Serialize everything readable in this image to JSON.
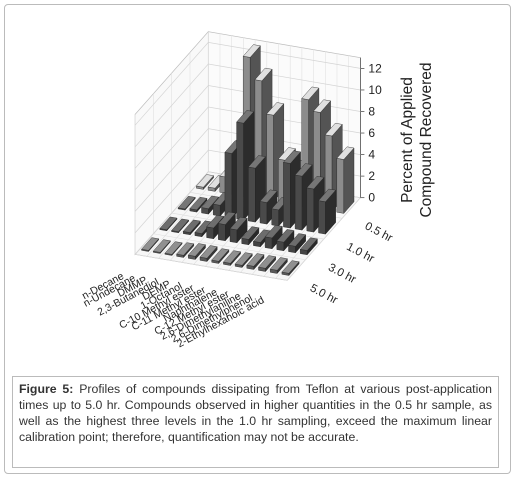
{
  "chart_data": {
    "type": "bar3d",
    "zlabel_lines": [
      "Percent of Applied",
      "Compound Recovered"
    ],
    "categories": [
      "n-Decane",
      "n-Undecane",
      "DMMP",
      "2,3-Butanediol",
      "DEMP",
      "1-Octanol",
      "C-10 Methyl ester",
      "C-11 Methyl ester",
      "Naphthalene",
      "C-12 Methyl ester",
      "2,6-Dimethylaniline",
      "2,6-Dimethylphenol",
      "2-Ethylhexanoic acid"
    ],
    "series": [
      {
        "name": "0.5 hr",
        "color": "#8c8c8c",
        "values": [
          0.2,
          0.3,
          1.5,
          4.5,
          13,
          11,
          8,
          4,
          3,
          10,
          9,
          7,
          5
        ]
      },
      {
        "name": "1.0 hr",
        "color": "#4a4a4a",
        "values": [
          0.1,
          0.2,
          0.5,
          1,
          6,
          9,
          5,
          2,
          1.5,
          6,
          5,
          4,
          3
        ]
      },
      {
        "name": "3.0 hr",
        "color": "#444444",
        "values": [
          0.1,
          0.1,
          0.2,
          0.3,
          1,
          1.5,
          1.2,
          0.5,
          0.4,
          1,
          0.8,
          0.6,
          0.4
        ]
      },
      {
        "name": "5.0 hr",
        "color": "#5a5a5a",
        "values": [
          0.1,
          0.1,
          0.1,
          0.2,
          0.3,
          0.3,
          0.2,
          0.2,
          0.2,
          0.3,
          0.3,
          0.3,
          0.2
        ]
      }
    ],
    "zlim": [
      0,
      13
    ],
    "zticks": [
      0,
      2,
      4,
      6,
      8,
      10,
      12
    ],
    "grid": true
  },
  "caption": {
    "label": "Figure 5:",
    "text": "Profiles of compounds dissipating from Teflon at various post-application times up to 5.0 hr.  Compounds observed in higher quantities in the 0.5 hr sample, as well as the highest three levels in the 1.0 hr sampling, exceed the maximum linear calibration point; therefore, quantification may not be accurate."
  }
}
